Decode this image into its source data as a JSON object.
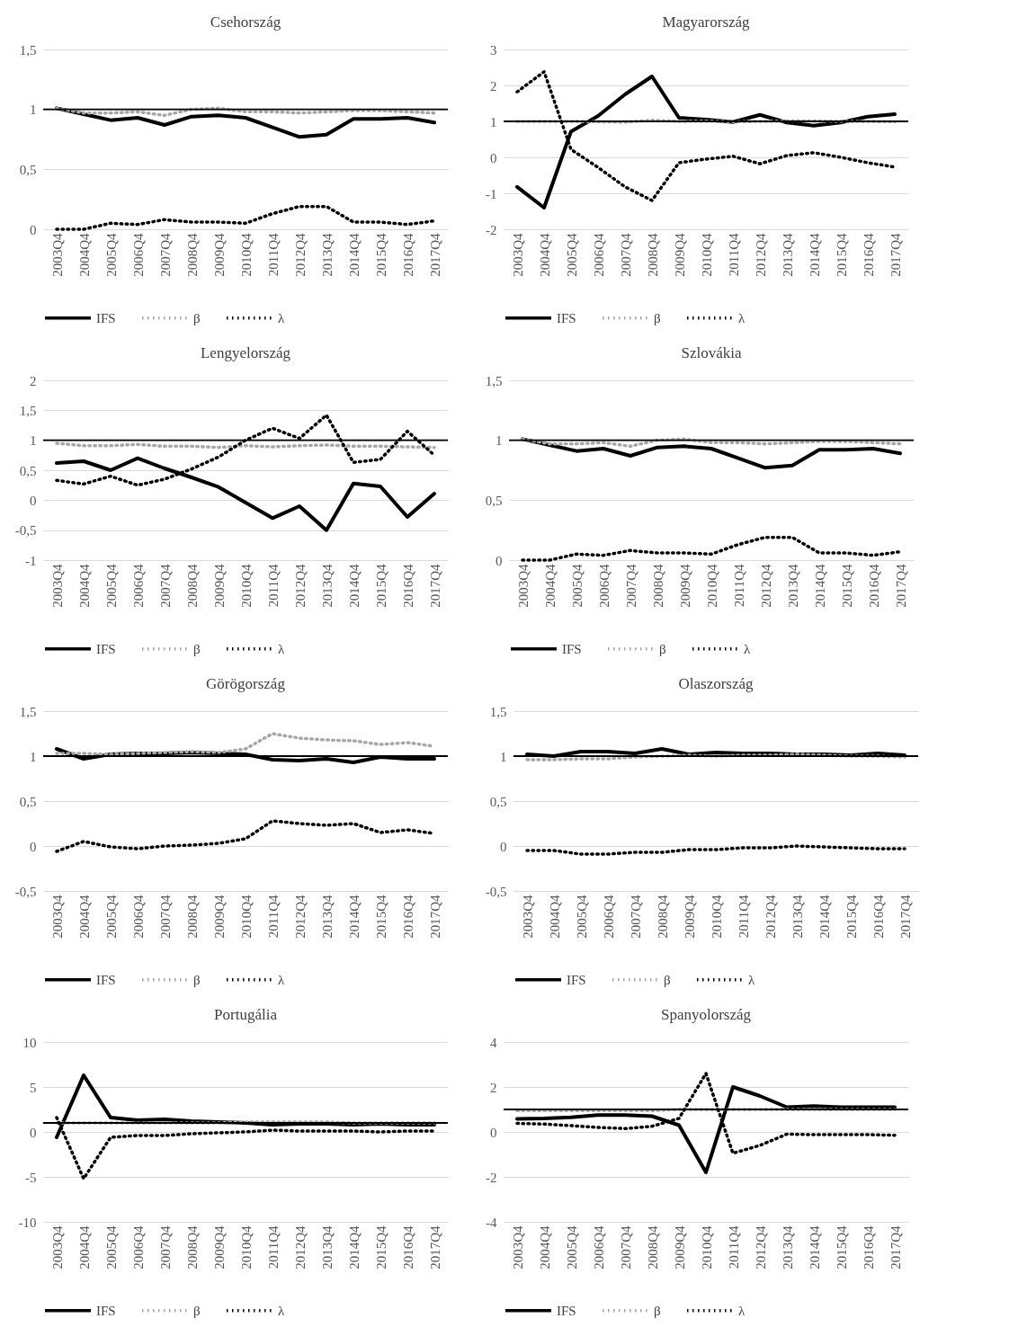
{
  "chart_data": [
    {
      "type": "line",
      "title": "Csehország",
      "categories": [
        "2003Q4",
        "2004Q4",
        "2005Q4",
        "2006Q4",
        "2007Q4",
        "2008Q4",
        "2009Q4",
        "2010Q4",
        "2011Q4",
        "2012Q4",
        "2013Q4",
        "2014Q4",
        "2015Q4",
        "2016Q4",
        "2017Q4"
      ],
      "ylim": [
        0,
        1.5
      ],
      "yticks": [
        0,
        {
          "value": 0.5,
          "label": "0,5"
        },
        1,
        {
          "value": 1.5,
          "label": "1,5"
        }
      ],
      "grid": "y",
      "legend": "bottom",
      "marker": "none",
      "ref_lines": [
        {
          "axis": "y",
          "value": 1,
          "color": "#000000"
        }
      ],
      "series": [
        {
          "name": "IFS",
          "color": "#000000",
          "line_style": "solid",
          "values": [
            1.01,
            0.96,
            0.91,
            0.93,
            0.87,
            0.94,
            0.95,
            0.93,
            0.85,
            0.77,
            0.79,
            0.92,
            0.92,
            0.93,
            0.89
          ]
        },
        {
          "name": "β",
          "color": "#a6a6a6",
          "line_style": "dotted",
          "values": [
            1.01,
            0.97,
            0.97,
            0.98,
            0.95,
            1.0,
            1.01,
            0.98,
            0.98,
            0.97,
            0.98,
            0.99,
            0.99,
            0.98,
            0.97
          ]
        },
        {
          "name": "λ",
          "color": "#000000",
          "line_style": "dotted",
          "values": [
            0.0,
            0.0,
            0.05,
            0.04,
            0.08,
            0.06,
            0.06,
            0.05,
            0.13,
            0.19,
            0.19,
            0.06,
            0.06,
            0.04,
            0.07
          ]
        }
      ]
    },
    {
      "type": "line",
      "title": "Magyarország",
      "categories": [
        "2003Q4",
        "2004Q4",
        "2005Q4",
        "2006Q4",
        "2007Q4",
        "2008Q4",
        "2009Q4",
        "2010Q4",
        "2011Q4",
        "2012Q4",
        "2013Q4",
        "2014Q4",
        "2015Q4",
        "2016Q4",
        "2017Q4"
      ],
      "ylim": [
        -2,
        3
      ],
      "yticks": [
        -2,
        -1,
        0,
        1,
        2,
        3
      ],
      "grid": "y",
      "legend": "bottom",
      "marker": "none",
      "ref_lines": [
        {
          "axis": "y",
          "value": 1,
          "color": "#000000"
        }
      ],
      "series": [
        {
          "name": "IFS",
          "color": "#000000",
          "line_style": "solid",
          "values": [
            -0.82,
            -1.4,
            0.72,
            1.15,
            1.75,
            2.25,
            1.1,
            1.05,
            0.98,
            1.18,
            0.97,
            0.88,
            0.97,
            1.13,
            1.2
          ]
        },
        {
          "name": "β",
          "color": "#a6a6a6",
          "line_style": "dotted",
          "values": [
            1.0,
            1.0,
            1.0,
            0.99,
            0.98,
            1.03,
            1.0,
            1.01,
            0.99,
            1.0,
            1.01,
            1.01,
            1.0,
            1.0,
            0.99
          ]
        },
        {
          "name": "λ",
          "color": "#000000",
          "line_style": "dotted",
          "values": [
            1.82,
            2.38,
            0.22,
            -0.28,
            -0.82,
            -1.2,
            -0.15,
            -0.05,
            0.03,
            -0.18,
            0.05,
            0.13,
            0.0,
            -0.15,
            -0.27
          ]
        }
      ]
    },
    {
      "type": "line",
      "title": "Lengyelország",
      "categories": [
        "2003Q4",
        "2004Q4",
        "2005Q4",
        "2006Q4",
        "2007Q4",
        "2008Q4",
        "2009Q4",
        "2010Q4",
        "2011Q4",
        "2012Q4",
        "2013Q4",
        "2014Q4",
        "2015Q4",
        "2016Q4",
        "2017Q4"
      ],
      "ylim": [
        -1,
        2
      ],
      "yticks": [
        -1,
        {
          "value": -0.5,
          "label": "-0,5"
        },
        0,
        {
          "value": 0.5,
          "label": "0,5"
        },
        1,
        {
          "value": 1.5,
          "label": "1,5"
        },
        2
      ],
      "grid": "y",
      "legend": "bottom",
      "marker": "none",
      "ref_lines": [
        {
          "axis": "y",
          "value": 1,
          "color": "#000000"
        }
      ],
      "series": [
        {
          "name": "IFS",
          "color": "#000000",
          "line_style": "solid",
          "values": [
            0.62,
            0.65,
            0.5,
            0.7,
            0.53,
            0.38,
            0.22,
            -0.04,
            -0.3,
            -0.1,
            -0.5,
            0.28,
            0.23,
            -0.28,
            0.11
          ]
        },
        {
          "name": "β",
          "color": "#a6a6a6",
          "line_style": "dotted",
          "values": [
            0.95,
            0.91,
            0.91,
            0.93,
            0.9,
            0.9,
            0.88,
            0.91,
            0.89,
            0.91,
            0.92,
            0.9,
            0.9,
            0.89,
            0.88
          ]
        },
        {
          "name": "λ",
          "color": "#000000",
          "line_style": "dotted",
          "values": [
            0.33,
            0.27,
            0.4,
            0.25,
            0.35,
            0.52,
            0.72,
            1.0,
            1.2,
            1.03,
            1.42,
            0.63,
            0.68,
            1.15,
            0.75
          ]
        }
      ]
    },
    {
      "type": "line",
      "title": "Szlovákia",
      "categories": [
        "2003Q4",
        "2004Q4",
        "2005Q4",
        "2006Q4",
        "2007Q4",
        "2008Q4",
        "2009Q4",
        "2010Q4",
        "2011Q4",
        "2012Q4",
        "2013Q4",
        "2014Q4",
        "2015Q4",
        "2016Q4",
        "2017Q4"
      ],
      "ylim": [
        0,
        1.5
      ],
      "yticks": [
        0,
        {
          "value": 0.5,
          "label": "0,5"
        },
        1,
        {
          "value": 1.5,
          "label": "1,5"
        }
      ],
      "grid": "y",
      "legend": "bottom",
      "marker": "none",
      "ref_lines": [
        {
          "axis": "y",
          "value": 1,
          "color": "#000000"
        }
      ],
      "series": [
        {
          "name": "IFS",
          "color": "#000000",
          "line_style": "solid",
          "values": [
            1.01,
            0.96,
            0.91,
            0.93,
            0.87,
            0.94,
            0.95,
            0.93,
            0.85,
            0.77,
            0.79,
            0.92,
            0.92,
            0.93,
            0.89
          ]
        },
        {
          "name": "β",
          "color": "#a6a6a6",
          "line_style": "dotted",
          "values": [
            1.01,
            0.97,
            0.97,
            0.98,
            0.95,
            1.0,
            1.01,
            0.98,
            0.98,
            0.97,
            0.98,
            0.99,
            0.99,
            0.98,
            0.97
          ]
        },
        {
          "name": "λ",
          "color": "#000000",
          "line_style": "dotted",
          "values": [
            0.0,
            0.0,
            0.05,
            0.04,
            0.08,
            0.06,
            0.06,
            0.05,
            0.13,
            0.19,
            0.19,
            0.06,
            0.06,
            0.04,
            0.07
          ]
        }
      ]
    },
    {
      "type": "line",
      "title": "Görögország",
      "categories": [
        "2003Q4",
        "2004Q4",
        "2005Q4",
        "2006Q4",
        "2007Q4",
        "2008Q4",
        "2009Q4",
        "2010Q4",
        "2011Q4",
        "2012Q4",
        "2013Q4",
        "2014Q4",
        "2015Q4",
        "2016Q4",
        "2017Q4"
      ],
      "ylim": [
        -0.5,
        1.5
      ],
      "yticks": [
        {
          "value": -0.5,
          "label": "-0,5"
        },
        0,
        {
          "value": 0.5,
          "label": "0,5"
        },
        1,
        {
          "value": 1.5,
          "label": "1,5"
        }
      ],
      "grid": "y",
      "legend": "bottom",
      "marker": "none",
      "ref_lines": [
        {
          "axis": "y",
          "value": 1,
          "color": "#000000"
        }
      ],
      "series": [
        {
          "name": "IFS",
          "color": "#000000",
          "line_style": "solid",
          "values": [
            1.08,
            0.97,
            1.02,
            1.03,
            1.03,
            1.04,
            1.03,
            1.02,
            0.96,
            0.95,
            0.97,
            0.93,
            0.99,
            0.97,
            0.97
          ]
        },
        {
          "name": "β",
          "color": "#a6a6a6",
          "line_style": "dotted",
          "values": [
            1.03,
            1.03,
            1.02,
            1.03,
            1.04,
            1.05,
            1.04,
            1.08,
            1.25,
            1.2,
            1.18,
            1.17,
            1.13,
            1.15,
            1.11
          ]
        },
        {
          "name": "λ",
          "color": "#000000",
          "line_style": "dotted",
          "values": [
            -0.06,
            0.05,
            -0.01,
            -0.03,
            0.0,
            0.01,
            0.03,
            0.08,
            0.28,
            0.25,
            0.23,
            0.25,
            0.15,
            0.18,
            0.14
          ]
        }
      ]
    },
    {
      "type": "line",
      "title": "Olaszország",
      "categories": [
        "2003Q4",
        "2004Q4",
        "2005Q4",
        "2006Q4",
        "2007Q4",
        "2008Q4",
        "2009Q4",
        "2010Q4",
        "2011Q4",
        "2012Q4",
        "2013Q4",
        "2014Q4",
        "2015Q4",
        "2016Q4",
        "2017Q4"
      ],
      "ylim": [
        -0.5,
        1.5
      ],
      "yticks": [
        {
          "value": -0.5,
          "label": "-0,5"
        },
        0,
        {
          "value": 0.5,
          "label": "0,5"
        },
        1,
        {
          "value": 1.5,
          "label": "1,5"
        }
      ],
      "grid": "y",
      "legend": "bottom",
      "marker": "none",
      "ref_lines": [
        {
          "axis": "y",
          "value": 1,
          "color": "#000000"
        }
      ],
      "series": [
        {
          "name": "IFS",
          "color": "#000000",
          "line_style": "solid",
          "values": [
            1.02,
            1.0,
            1.05,
            1.05,
            1.03,
            1.08,
            1.02,
            1.04,
            1.03,
            1.03,
            1.02,
            1.02,
            1.01,
            1.03,
            1.01
          ]
        },
        {
          "name": "β",
          "color": "#a6a6a6",
          "line_style": "dotted",
          "values": [
            0.96,
            0.96,
            0.97,
            0.97,
            0.99,
            1.0,
            1.01,
            1.0,
            1.01,
            1.01,
            1.02,
            1.01,
            1.0,
            1.0,
            0.99
          ]
        },
        {
          "name": "λ",
          "color": "#000000",
          "line_style": "dotted",
          "values": [
            -0.05,
            -0.05,
            -0.09,
            -0.09,
            -0.07,
            -0.07,
            -0.04,
            -0.04,
            -0.02,
            -0.02,
            0.0,
            -0.01,
            -0.02,
            -0.03,
            -0.03
          ]
        }
      ]
    },
    {
      "type": "line",
      "title": "Portugália",
      "categories": [
        "2003Q4",
        "2004Q4",
        "2005Q4",
        "2006Q4",
        "2007Q4",
        "2008Q4",
        "2009Q4",
        "2010Q4",
        "2011Q4",
        "2012Q4",
        "2013Q4",
        "2014Q4",
        "2015Q4",
        "2016Q4",
        "2017Q4"
      ],
      "ylim": [
        -10,
        10
      ],
      "yticks": [
        -10,
        -5,
        0,
        5,
        10
      ],
      "grid": "y",
      "legend": "bottom",
      "marker": "none",
      "ref_lines": [
        {
          "axis": "y",
          "value": 1,
          "color": "#000000"
        }
      ],
      "series": [
        {
          "name": "IFS",
          "color": "#000000",
          "line_style": "solid",
          "values": [
            -0.6,
            6.3,
            1.6,
            1.3,
            1.4,
            1.2,
            1.1,
            1.0,
            0.8,
            0.9,
            0.9,
            0.8,
            0.9,
            0.8,
            0.8
          ]
        },
        {
          "name": "β",
          "color": "#a6a6a6",
          "line_style": "dotted",
          "values": [
            1.0,
            1.0,
            1.0,
            1.0,
            1.0,
            1.0,
            1.0,
            1.1,
            1.1,
            1.1,
            1.1,
            1.0,
            1.0,
            1.0,
            1.0
          ]
        },
        {
          "name": "λ",
          "color": "#000000",
          "line_style": "dotted",
          "values": [
            1.6,
            -5.2,
            -0.6,
            -0.4,
            -0.4,
            -0.2,
            -0.1,
            0.0,
            0.2,
            0.1,
            0.1,
            0.1,
            0.0,
            0.1,
            0.1
          ]
        }
      ]
    },
    {
      "type": "line",
      "title": "Spanyolország",
      "categories": [
        "2003Q4",
        "2004Q4",
        "2005Q4",
        "2006Q4",
        "2007Q4",
        "2008Q4",
        "2009Q4",
        "2010Q4",
        "2011Q4",
        "2012Q4",
        "2013Q4",
        "2014Q4",
        "2015Q4",
        "2016Q4",
        "2017Q4"
      ],
      "ylim": [
        -4,
        4
      ],
      "yticks": [
        -4,
        -2,
        0,
        2,
        4
      ],
      "grid": "y",
      "legend": "bottom",
      "marker": "none",
      "ref_lines": [
        {
          "axis": "y",
          "value": 1,
          "color": "#000000"
        }
      ],
      "series": [
        {
          "name": "IFS",
          "color": "#000000",
          "line_style": "solid",
          "values": [
            0.58,
            0.6,
            0.65,
            0.75,
            0.75,
            0.7,
            0.3,
            -1.8,
            2.0,
            1.6,
            1.1,
            1.15,
            1.1,
            1.1,
            1.1
          ]
        },
        {
          "name": "β",
          "color": "#a6a6a6",
          "line_style": "dotted",
          "values": [
            0.95,
            0.95,
            0.95,
            0.95,
            0.95,
            0.95,
            1.0,
            1.0,
            1.0,
            1.0,
            1.0,
            1.0,
            1.0,
            1.0,
            1.0
          ]
        },
        {
          "name": "λ",
          "color": "#000000",
          "line_style": "dotted",
          "values": [
            0.38,
            0.35,
            0.28,
            0.2,
            0.15,
            0.25,
            0.6,
            2.6,
            -0.95,
            -0.6,
            -0.1,
            -0.12,
            -0.12,
            -0.12,
            -0.15
          ]
        }
      ]
    }
  ]
}
